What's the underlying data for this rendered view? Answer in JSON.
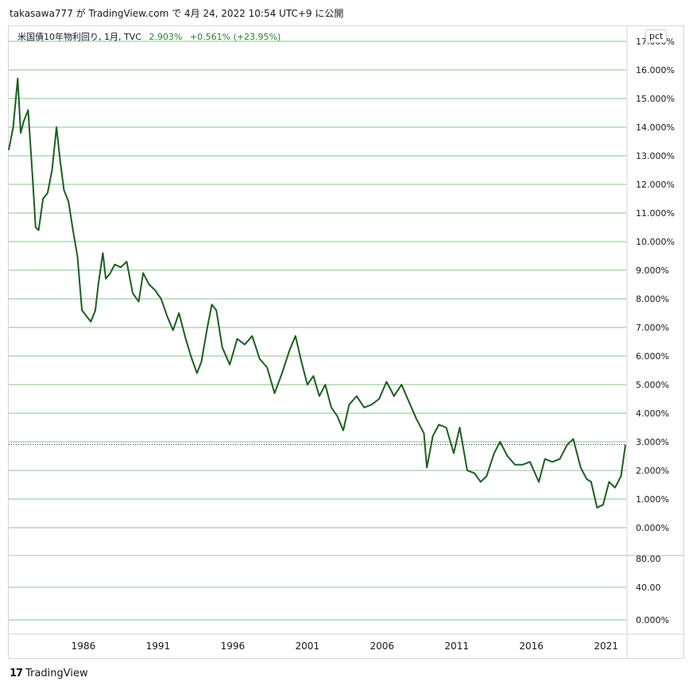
{
  "header": {
    "text": "takasawa777 が TradingView.com で 4月 24, 2022 10:54 UTC+9 に公開"
  },
  "legend": {
    "symbol": "米国債10年物利回り, 1月, TVC",
    "price": "2.903%",
    "change": "+0.561% (+23.95%)"
  },
  "scale_button": "pct",
  "footer": {
    "logo_text": "TradingView",
    "logo_mark": "17"
  },
  "colors": {
    "line": "#1b5e20",
    "grid": "#8bc38b",
    "axis_text": "#131722"
  },
  "chart_data": [
    {
      "type": "line",
      "title": "米国債10年物利回り",
      "ylabel": "",
      "xlabel": "",
      "ylim": [
        0,
        17
      ],
      "y_ticks": [
        "17.000%",
        "16.000%",
        "15.000%",
        "14.000%",
        "13.000%",
        "12.000%",
        "11.000%",
        "10.000%",
        "9.000%",
        "8.000%",
        "7.000%",
        "6.000%",
        "5.000%",
        "4.000%",
        "3.000%",
        "2.000%",
        "1.000%",
        "0.000%"
      ],
      "x_ticks": [
        "1986",
        "1991",
        "1996",
        "2001",
        "2006",
        "2011",
        "2016",
        "2021"
      ],
      "current_value": 2.903,
      "series": [
        {
          "x": [
            1981.0,
            1981.3,
            1981.6,
            1981.8,
            1982.0,
            1982.3,
            1982.6,
            1982.8,
            1983.0,
            1983.3,
            1983.6,
            1983.9,
            1984.2,
            1984.45,
            1984.7,
            1985.0,
            1985.3,
            1985.6,
            1985.9,
            1986.2,
            1986.5,
            1986.8,
            1987.0,
            1987.3,
            1987.5,
            1987.8,
            1988.1,
            1988.5,
            1988.9,
            1989.3,
            1989.7,
            1990.0,
            1990.4,
            1990.8,
            1991.2,
            1991.6,
            1992.0,
            1992.4,
            1992.8,
            1993.2,
            1993.6,
            1993.9,
            1994.3,
            1994.6,
            1994.9,
            1995.3,
            1995.8,
            1996.3,
            1996.8,
            1997.3,
            1997.8,
            1998.3,
            1998.8,
            1999.3,
            1999.8,
            2000.2,
            2000.6,
            2001.0,
            2001.4,
            2001.8,
            2002.2,
            2002.6,
            2003.0,
            2003.4,
            2003.8,
            2004.3,
            2004.8,
            2005.3,
            2005.8,
            2006.3,
            2006.8,
            2007.3,
            2007.8,
            2008.3,
            2008.8,
            2009.0,
            2009.4,
            2009.8,
            2010.3,
            2010.8,
            2011.2,
            2011.7,
            2012.2,
            2012.6,
            2013.0,
            2013.5,
            2013.9,
            2014.4,
            2014.9,
            2015.4,
            2015.9,
            2016.5,
            2016.9,
            2017.4,
            2017.9,
            2018.4,
            2018.8,
            2019.3,
            2019.7,
            2020.0,
            2020.4,
            2020.8,
            2021.2,
            2021.6,
            2022.0,
            2022.3
          ],
          "values": [
            13.2,
            14.0,
            15.7,
            13.8,
            14.2,
            14.6,
            12.2,
            10.5,
            10.4,
            11.5,
            11.7,
            12.5,
            14.0,
            12.8,
            11.8,
            11.4,
            10.4,
            9.5,
            7.6,
            7.4,
            7.2,
            7.6,
            8.5,
            9.6,
            8.7,
            8.9,
            9.2,
            9.1,
            9.3,
            8.2,
            7.9,
            8.9,
            8.5,
            8.3,
            8.0,
            7.4,
            6.9,
            7.5,
            6.7,
            6.0,
            5.4,
            5.8,
            7.0,
            7.8,
            7.6,
            6.3,
            5.7,
            6.6,
            6.4,
            6.7,
            5.9,
            5.6,
            4.7,
            5.4,
            6.2,
            6.7,
            5.8,
            5.0,
            5.3,
            4.6,
            5.0,
            4.2,
            3.9,
            3.4,
            4.3,
            4.6,
            4.2,
            4.3,
            4.5,
            5.1,
            4.6,
            5.0,
            4.4,
            3.8,
            3.3,
            2.1,
            3.2,
            3.6,
            3.5,
            2.6,
            3.5,
            2.0,
            1.9,
            1.6,
            1.8,
            2.6,
            3.0,
            2.5,
            2.2,
            2.2,
            2.3,
            1.6,
            2.4,
            2.3,
            2.4,
            2.9,
            3.1,
            2.1,
            1.7,
            1.6,
            0.7,
            0.8,
            1.6,
            1.4,
            1.8,
            2.9
          ]
        }
      ]
    },
    {
      "type": "line",
      "title": "",
      "y_ticks": [
        "80.00",
        "40.00",
        "0.000%"
      ],
      "series": []
    }
  ]
}
